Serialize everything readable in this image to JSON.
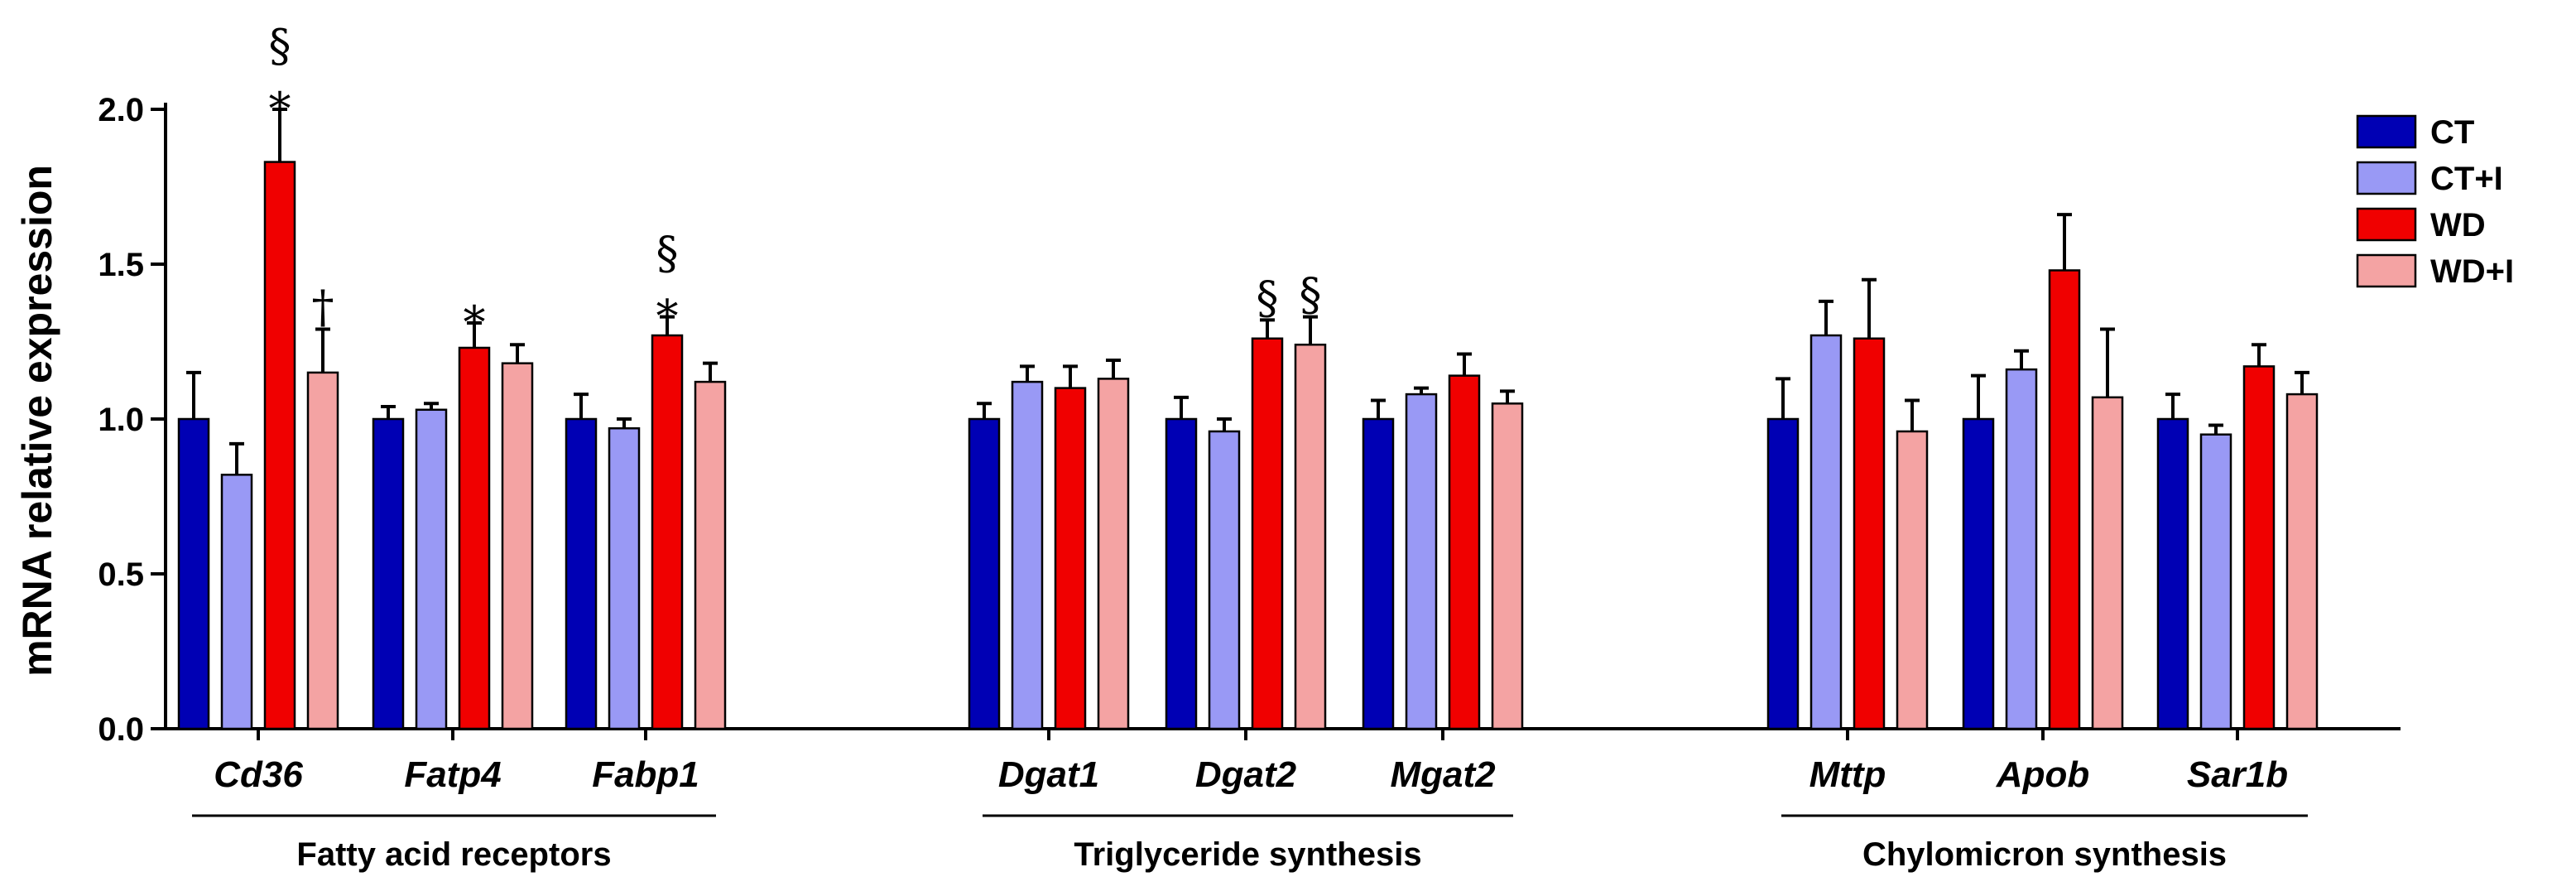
{
  "chart_data": {
    "type": "bar",
    "title": "",
    "ylabel": "mRNA relative expression",
    "ylim": [
      0,
      2.0
    ],
    "yticks": [
      "0.0",
      "0.5",
      "1.0",
      "1.5",
      "2.0"
    ],
    "ytick_values": [
      0,
      0.5,
      1.0,
      1.5,
      2.0
    ],
    "categories": [
      "Cd36",
      "Fatp4",
      "Fabp1",
      "Dgat1",
      "Dgat2",
      "Mgat2",
      "Mttp",
      "Apob",
      "Sar1b"
    ],
    "groups": [
      {
        "label": "Fatty acid receptors",
        "categories": [
          0,
          1,
          2
        ]
      },
      {
        "label": "Triglyceride synthesis",
        "categories": [
          3,
          4,
          5
        ]
      },
      {
        "label": "Chylomicron synthesis",
        "categories": [
          6,
          7,
          8
        ]
      }
    ],
    "legend_position": "top-right",
    "series": [
      {
        "name": "CT",
        "color": "#0000B4",
        "values": [
          1.0,
          1.0,
          1.0,
          1.0,
          1.0,
          1.0,
          1.0,
          1.0,
          1.0
        ],
        "errors": [
          0.15,
          0.04,
          0.08,
          0.05,
          0.07,
          0.06,
          0.13,
          0.14,
          0.08
        ]
      },
      {
        "name": "CT+I",
        "color": "#9999F5",
        "values": [
          0.82,
          1.03,
          0.97,
          1.12,
          0.96,
          1.08,
          1.27,
          1.16,
          0.95
        ],
        "errors": [
          0.1,
          0.02,
          0.03,
          0.05,
          0.04,
          0.02,
          0.11,
          0.06,
          0.03
        ]
      },
      {
        "name": "WD",
        "color": "#F00000",
        "values": [
          1.83,
          1.23,
          1.27,
          1.1,
          1.26,
          1.14,
          1.26,
          1.48,
          1.17
        ],
        "errors": [
          0.17,
          0.08,
          0.06,
          0.07,
          0.06,
          0.07,
          0.19,
          0.18,
          0.07
        ]
      },
      {
        "name": "WD+I",
        "color": "#F4A3A3",
        "values": [
          1.15,
          1.18,
          1.12,
          1.13,
          1.24,
          1.05,
          0.96,
          1.07,
          1.08
        ],
        "errors": [
          0.14,
          0.06,
          0.06,
          0.06,
          0.09,
          0.04,
          0.1,
          0.22,
          0.07
        ]
      }
    ],
    "annotations": [
      {
        "category": 0,
        "series": 2,
        "symbols": [
          "§",
          "*"
        ]
      },
      {
        "category": 0,
        "series": 3,
        "symbols": [
          "†"
        ]
      },
      {
        "category": 1,
        "series": 2,
        "symbols": [
          "*"
        ]
      },
      {
        "category": 2,
        "series": 2,
        "symbols": [
          "§",
          "*"
        ]
      },
      {
        "category": 4,
        "series": 2,
        "symbols": [
          "§"
        ]
      },
      {
        "category": 4,
        "series": 3,
        "symbols": [
          "§"
        ]
      }
    ]
  }
}
